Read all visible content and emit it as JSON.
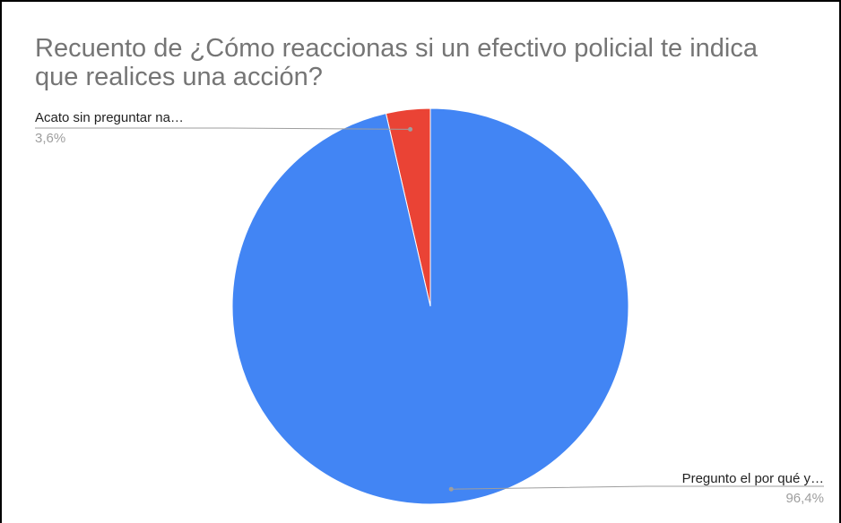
{
  "chart_data": {
    "type": "pie",
    "title_lines": [
      "Recuento de ¿Cómo reaccionas si un efectivo policial te indica",
      "que realices una acción?"
    ],
    "slices": [
      {
        "label": "Acato sin preguntar na…",
        "value": 3.6,
        "percent_label": "3,6%",
        "color": "#ea4335"
      },
      {
        "label": "Pregunto el por qué y…",
        "value": 96.4,
        "percent_label": "96,4%",
        "color": "#4285f4"
      }
    ],
    "legend": "none",
    "start_angle_deg": 0,
    "direction": "counterclockwise"
  }
}
